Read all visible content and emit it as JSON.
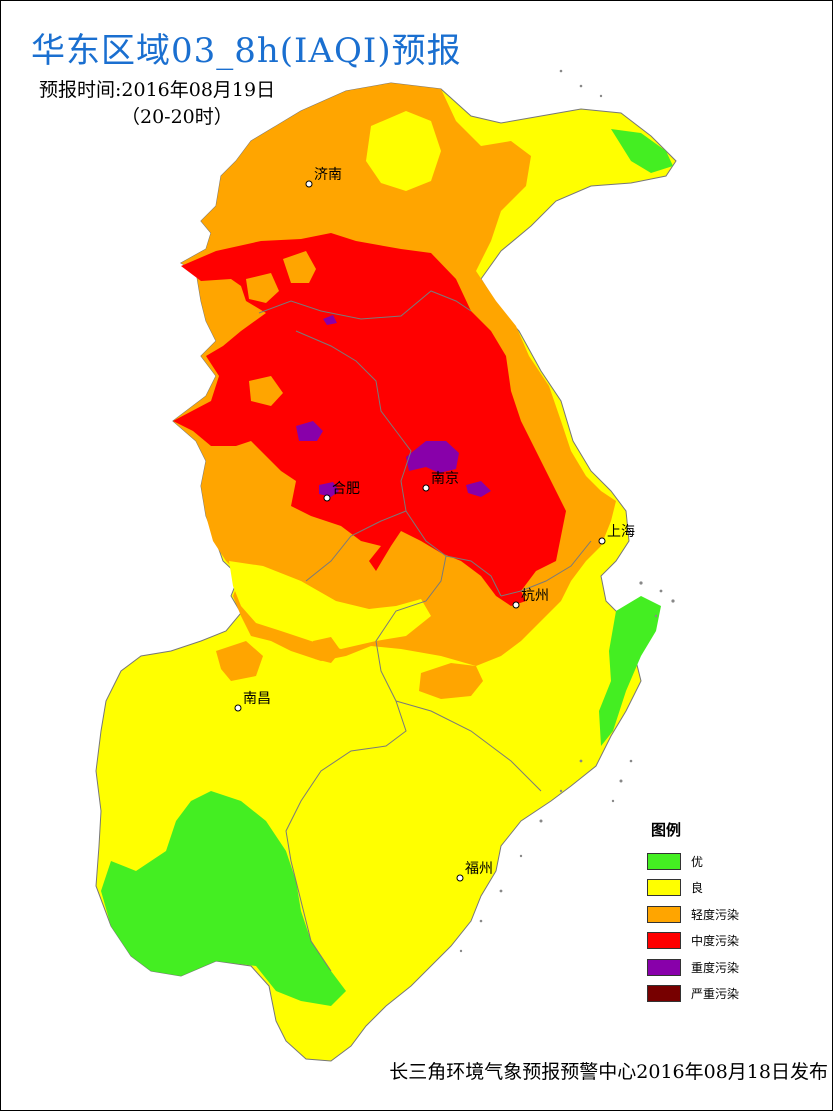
{
  "header": {
    "title": "华东区域03_8h(IAQI)预报",
    "forecast_time": "预报时间:2016年08月19日",
    "hours": "（20-20时）"
  },
  "cities": [
    {
      "name": "济南",
      "id": "jinan"
    },
    {
      "name": "合肥",
      "id": "hefei"
    },
    {
      "name": "南京",
      "id": "nanjing"
    },
    {
      "name": "上海",
      "id": "shanghai"
    },
    {
      "name": "杭州",
      "id": "hangzhou"
    },
    {
      "name": "南昌",
      "id": "nanchang"
    },
    {
      "name": "福州",
      "id": "fuzhou"
    }
  ],
  "legend": {
    "title": "图例",
    "items": [
      {
        "label": "优",
        "color": "#44ee22"
      },
      {
        "label": "良",
        "color": "#ffff00"
      },
      {
        "label": "轻度污染",
        "color": "#ffa500"
      },
      {
        "label": "中度污染",
        "color": "#ff0000"
      },
      {
        "label": "重度污染",
        "color": "#8800aa"
      },
      {
        "label": "严重污染",
        "color": "#770000"
      }
    ]
  },
  "footer": {
    "issuer": "长三角环境气象预报预警中心2016年08月18日发布"
  }
}
